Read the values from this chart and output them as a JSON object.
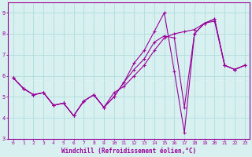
{
  "x": [
    0,
    1,
    2,
    3,
    4,
    5,
    6,
    7,
    8,
    9,
    10,
    11,
    12,
    13,
    14,
    15,
    16,
    17,
    18,
    19,
    20,
    21,
    22,
    23
  ],
  "line1": [
    5.9,
    5.4,
    5.1,
    5.2,
    4.6,
    4.7,
    4.1,
    4.8,
    5.1,
    4.5,
    5.0,
    5.7,
    6.6,
    7.2,
    8.1,
    9.0,
    6.2,
    3.3,
    8.0,
    8.5,
    8.7,
    6.5,
    6.3,
    6.5
  ],
  "line2": [
    5.9,
    5.4,
    5.1,
    5.2,
    4.6,
    4.7,
    4.1,
    4.8,
    5.1,
    4.5,
    5.0,
    5.7,
    6.3,
    6.8,
    7.6,
    7.9,
    7.8,
    4.5,
    8.0,
    8.5,
    8.7,
    6.5,
    6.3,
    6.5
  ],
  "line3": [
    5.9,
    5.4,
    5.1,
    5.2,
    4.6,
    4.7,
    4.1,
    4.8,
    5.1,
    4.5,
    5.2,
    5.5,
    6.0,
    6.5,
    7.2,
    7.8,
    8.0,
    8.1,
    8.2,
    8.5,
    8.6,
    6.5,
    6.3,
    6.5
  ],
  "line_color": "#990099",
  "bg_color": "#d8f0f0",
  "grid_color": "#b0dede",
  "axis_color": "#990099",
  "spine_color": "#990099",
  "xlabel": "Windchill (Refroidissement éolien,°C)",
  "ylim": [
    3,
    9.5
  ],
  "xlim_min": -0.5,
  "xlim_max": 23.5,
  "yticks": [
    3,
    4,
    5,
    6,
    7,
    8,
    9
  ],
  "xticks": [
    0,
    1,
    2,
    3,
    4,
    5,
    6,
    7,
    8,
    9,
    10,
    11,
    12,
    13,
    14,
    15,
    16,
    17,
    18,
    19,
    20,
    21,
    22,
    23
  ],
  "tick_fontsize": 4.5,
  "xlabel_fontsize": 5.5,
  "linewidth": 0.8,
  "markersize": 3.0
}
